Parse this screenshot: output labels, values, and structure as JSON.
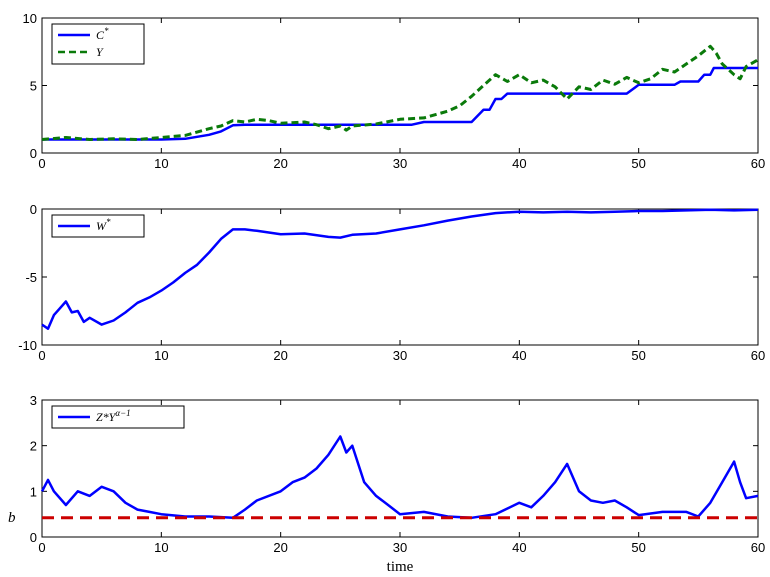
{
  "chart_data": [
    {
      "type": "line",
      "xlabel": "",
      "ylabel": "",
      "xlim": [
        0,
        60
      ],
      "ylim": [
        0,
        10
      ],
      "x_ticks": [
        "0",
        "10",
        "20",
        "30",
        "40",
        "50",
        "60"
      ],
      "y_ticks": [
        "0",
        "5",
        "10"
      ],
      "legend_position": "top-left",
      "series": [
        {
          "name": "C*",
          "color": "#0000ff",
          "style": "solid",
          "points": [
            [
              0,
              1.0
            ],
            [
              1,
              1.0
            ],
            [
              6,
              1.0
            ],
            [
              10,
              1.0
            ],
            [
              12,
              1.05
            ],
            [
              13,
              1.2
            ],
            [
              14,
              1.35
            ],
            [
              15,
              1.6
            ],
            [
              16,
              2.05
            ],
            [
              17,
              2.1
            ],
            [
              30,
              2.1
            ],
            [
              31,
              2.1
            ],
            [
              32,
              2.3
            ],
            [
              36,
              2.3
            ],
            [
              37,
              3.2
            ],
            [
              37.5,
              3.2
            ],
            [
              38,
              4.0
            ],
            [
              38.5,
              4.0
            ],
            [
              39,
              4.4
            ],
            [
              49,
              4.4
            ],
            [
              50,
              5.05
            ],
            [
              53,
              5.05
            ],
            [
              53.5,
              5.3
            ],
            [
              55,
              5.3
            ],
            [
              55.5,
              5.8
            ],
            [
              56,
              5.8
            ],
            [
              56.3,
              6.3
            ],
            [
              60,
              6.3
            ]
          ]
        },
        {
          "name": "Y",
          "color": "#0a7a0a",
          "style": "dashed",
          "points": [
            [
              0,
              1.0
            ],
            [
              2,
              1.15
            ],
            [
              4,
              1.0
            ],
            [
              6,
              1.05
            ],
            [
              8,
              1.0
            ],
            [
              10,
              1.15
            ],
            [
              12,
              1.3
            ],
            [
              14,
              1.8
            ],
            [
              15,
              2.0
            ],
            [
              16,
              2.4
            ],
            [
              17,
              2.3
            ],
            [
              18,
              2.5
            ],
            [
              19,
              2.4
            ],
            [
              20,
              2.2
            ],
            [
              22,
              2.3
            ],
            [
              23,
              2.1
            ],
            [
              24,
              1.8
            ],
            [
              25,
              2.0
            ],
            [
              25.5,
              1.7
            ],
            [
              26,
              2.0
            ],
            [
              28,
              2.15
            ],
            [
              30,
              2.5
            ],
            [
              32,
              2.6
            ],
            [
              34,
              3.1
            ],
            [
              35,
              3.5
            ],
            [
              36,
              4.2
            ],
            [
              37,
              5.0
            ],
            [
              38,
              5.8
            ],
            [
              39,
              5.3
            ],
            [
              40,
              5.8
            ],
            [
              41,
              5.2
            ],
            [
              42,
              5.4
            ],
            [
              43,
              4.9
            ],
            [
              44,
              4.0
            ],
            [
              45,
              4.9
            ],
            [
              46,
              4.7
            ],
            [
              47,
              5.4
            ],
            [
              48,
              5.1
            ],
            [
              49,
              5.6
            ],
            [
              50,
              5.2
            ],
            [
              51,
              5.5
            ],
            [
              52,
              6.2
            ],
            [
              53,
              6.0
            ],
            [
              54,
              6.6
            ],
            [
              55,
              7.2
            ],
            [
              56,
              7.9
            ],
            [
              56.5,
              7.4
            ],
            [
              57,
              6.6
            ],
            [
              58,
              5.8
            ],
            [
              58.5,
              5.5
            ],
            [
              59,
              6.4
            ],
            [
              60,
              6.9
            ]
          ]
        }
      ]
    },
    {
      "type": "line",
      "xlabel": "",
      "ylabel": "",
      "xlim": [
        0,
        60
      ],
      "ylim": [
        -10,
        0
      ],
      "x_ticks": [
        "0",
        "10",
        "20",
        "30",
        "40",
        "50",
        "60"
      ],
      "y_ticks": [
        "-10",
        "-5",
        "0"
      ],
      "legend_position": "top-left",
      "series": [
        {
          "name": "W*",
          "color": "#0000ff",
          "style": "solid",
          "points": [
            [
              0,
              -8.5
            ],
            [
              0.5,
              -8.8
            ],
            [
              1,
              -7.8
            ],
            [
              1.5,
              -7.3
            ],
            [
              2,
              -6.8
            ],
            [
              2.5,
              -7.6
            ],
            [
              3,
              -7.5
            ],
            [
              3.5,
              -8.3
            ],
            [
              4,
              -8.0
            ],
            [
              5,
              -8.5
            ],
            [
              6,
              -8.2
            ],
            [
              7,
              -7.6
            ],
            [
              8,
              -6.9
            ],
            [
              9,
              -6.5
            ],
            [
              10,
              -6.0
            ],
            [
              11,
              -5.4
            ],
            [
              12,
              -4.7
            ],
            [
              13,
              -4.1
            ],
            [
              14,
              -3.2
            ],
            [
              15,
              -2.2
            ],
            [
              16,
              -1.5
            ],
            [
              17,
              -1.5
            ],
            [
              18,
              -1.6
            ],
            [
              20,
              -1.85
            ],
            [
              22,
              -1.8
            ],
            [
              24,
              -2.05
            ],
            [
              25,
              -2.1
            ],
            [
              26,
              -1.9
            ],
            [
              28,
              -1.8
            ],
            [
              30,
              -1.5
            ],
            [
              32,
              -1.2
            ],
            [
              34,
              -0.85
            ],
            [
              36,
              -0.55
            ],
            [
              38,
              -0.3
            ],
            [
              40,
              -0.2
            ],
            [
              42,
              -0.25
            ],
            [
              44,
              -0.2
            ],
            [
              46,
              -0.25
            ],
            [
              48,
              -0.2
            ],
            [
              50,
              -0.15
            ],
            [
              52,
              -0.15
            ],
            [
              54,
              -0.1
            ],
            [
              56,
              -0.05
            ],
            [
              58,
              -0.1
            ],
            [
              60,
              -0.05
            ]
          ]
        }
      ]
    },
    {
      "type": "line",
      "xlabel": "time",
      "ylabel": "",
      "xlim": [
        0,
        60
      ],
      "ylim": [
        0,
        3
      ],
      "x_ticks": [
        "0",
        "10",
        "20",
        "30",
        "40",
        "50",
        "60"
      ],
      "y_ticks": [
        "0",
        "1",
        "2",
        "3"
      ],
      "legend_position": "top-left",
      "annotations": [
        {
          "text": "b",
          "y": 0.42
        }
      ],
      "series": [
        {
          "name": "Z*Y^(α−1)",
          "color": "#0000ff",
          "style": "solid",
          "points": [
            [
              0,
              1.0
            ],
            [
              0.5,
              1.25
            ],
            [
              1,
              1.0
            ],
            [
              2,
              0.7
            ],
            [
              3,
              1.0
            ],
            [
              4,
              0.9
            ],
            [
              5,
              1.1
            ],
            [
              6,
              1.0
            ],
            [
              7,
              0.75
            ],
            [
              8,
              0.6
            ],
            [
              9,
              0.55
            ],
            [
              10,
              0.5
            ],
            [
              12,
              0.45
            ],
            [
              14,
              0.45
            ],
            [
              16,
              0.42
            ],
            [
              17,
              0.6
            ],
            [
              18,
              0.8
            ],
            [
              20,
              1.0
            ],
            [
              21,
              1.2
            ],
            [
              22,
              1.3
            ],
            [
              23,
              1.5
            ],
            [
              24,
              1.8
            ],
            [
              25,
              2.2
            ],
            [
              25.5,
              1.85
            ],
            [
              26,
              2.0
            ],
            [
              27,
              1.2
            ],
            [
              28,
              0.9
            ],
            [
              29,
              0.7
            ],
            [
              30,
              0.5
            ],
            [
              32,
              0.55
            ],
            [
              34,
              0.45
            ],
            [
              36,
              0.42
            ],
            [
              38,
              0.5
            ],
            [
              40,
              0.75
            ],
            [
              41,
              0.65
            ],
            [
              42,
              0.9
            ],
            [
              43,
              1.2
            ],
            [
              44,
              1.6
            ],
            [
              45,
              1.0
            ],
            [
              46,
              0.8
            ],
            [
              47,
              0.75
            ],
            [
              48,
              0.8
            ],
            [
              49,
              0.65
            ],
            [
              50,
              0.48
            ],
            [
              52,
              0.55
            ],
            [
              54,
              0.55
            ],
            [
              55,
              0.45
            ],
            [
              56,
              0.75
            ],
            [
              57,
              1.2
            ],
            [
              58,
              1.65
            ],
            [
              58.5,
              1.2
            ],
            [
              59,
              0.85
            ],
            [
              60,
              0.9
            ]
          ]
        },
        {
          "name": "",
          "color": "#cc0000",
          "style": "dashed",
          "points": [
            [
              0,
              0.42
            ],
            [
              60,
              0.42
            ]
          ]
        }
      ]
    }
  ]
}
